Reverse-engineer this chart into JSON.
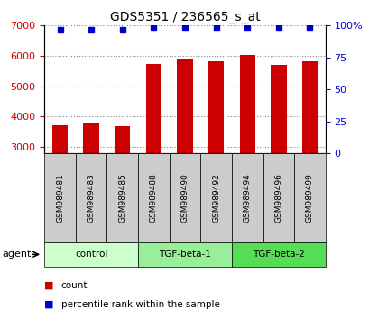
{
  "title": "GDS5351 / 236565_s_at",
  "samples": [
    "GSM989481",
    "GSM989483",
    "GSM989485",
    "GSM989488",
    "GSM989490",
    "GSM989492",
    "GSM989494",
    "GSM989496",
    "GSM989499"
  ],
  "counts": [
    3720,
    3780,
    3680,
    5720,
    5870,
    5830,
    6020,
    5710,
    5810
  ],
  "percentile_ranks": [
    97,
    97,
    97,
    99,
    99,
    99,
    99,
    99,
    99
  ],
  "groups": [
    {
      "label": "control",
      "start": 0,
      "end": 3,
      "color": "#ccffcc"
    },
    {
      "label": "TGF-beta-1",
      "start": 3,
      "end": 6,
      "color": "#99ee99"
    },
    {
      "label": "TGF-beta-2",
      "start": 6,
      "end": 9,
      "color": "#55dd55"
    }
  ],
  "bar_color": "#cc0000",
  "dot_color": "#0000cc",
  "ylim_left": [
    2800,
    7000
  ],
  "ylim_right": [
    0,
    100
  ],
  "yticks_left": [
    3000,
    4000,
    5000,
    6000,
    7000
  ],
  "yticks_right": [
    0,
    25,
    50,
    75,
    100
  ],
  "grid_color": "#888888",
  "background_color": "#ffffff",
  "sample_box_color": "#cccccc",
  "legend_count_color": "#cc0000",
  "legend_pct_color": "#0000cc"
}
